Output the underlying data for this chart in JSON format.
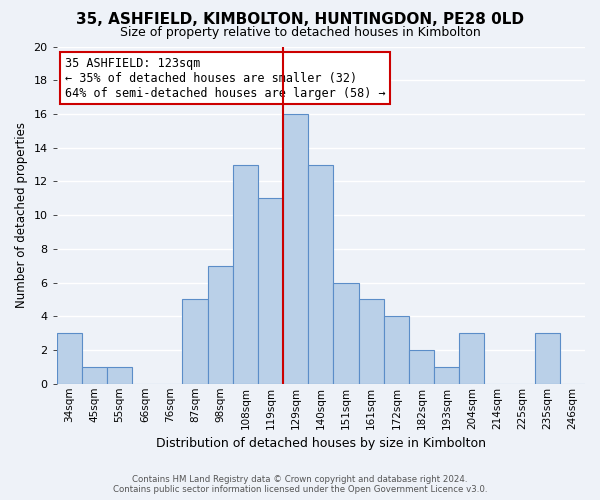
{
  "title": "35, ASHFIELD, KIMBOLTON, HUNTINGDON, PE28 0LD",
  "subtitle": "Size of property relative to detached houses in Kimbolton",
  "xlabel": "Distribution of detached houses by size in Kimbolton",
  "ylabel": "Number of detached properties",
  "bar_labels": [
    "34sqm",
    "45sqm",
    "55sqm",
    "66sqm",
    "76sqm",
    "87sqm",
    "98sqm",
    "108sqm",
    "119sqm",
    "129sqm",
    "140sqm",
    "151sqm",
    "161sqm",
    "172sqm",
    "182sqm",
    "193sqm",
    "204sqm",
    "214sqm",
    "225sqm",
    "235sqm",
    "246sqm"
  ],
  "bar_values": [
    3,
    1,
    1,
    0,
    0,
    5,
    7,
    13,
    11,
    16,
    13,
    6,
    5,
    4,
    2,
    1,
    3,
    0,
    0,
    3,
    0
  ],
  "bar_color": "#bad0e8",
  "bar_edge_color": "#5b8dc8",
  "background_color": "#eef2f8",
  "grid_color": "#ffffff",
  "ylim": [
    0,
    20
  ],
  "yticks": [
    0,
    2,
    4,
    6,
    8,
    10,
    12,
    14,
    16,
    18,
    20
  ],
  "vline_x": 8.5,
  "vline_color": "#cc0000",
  "annotation_title": "35 ASHFIELD: 123sqm",
  "annotation_line1": "← 35% of detached houses are smaller (32)",
  "annotation_line2": "64% of semi-detached houses are larger (58) →",
  "annotation_box_facecolor": "#ffffff",
  "annotation_box_edgecolor": "#cc0000",
  "footer_line1": "Contains HM Land Registry data © Crown copyright and database right 2024.",
  "footer_line2": "Contains public sector information licensed under the Open Government Licence v3.0."
}
